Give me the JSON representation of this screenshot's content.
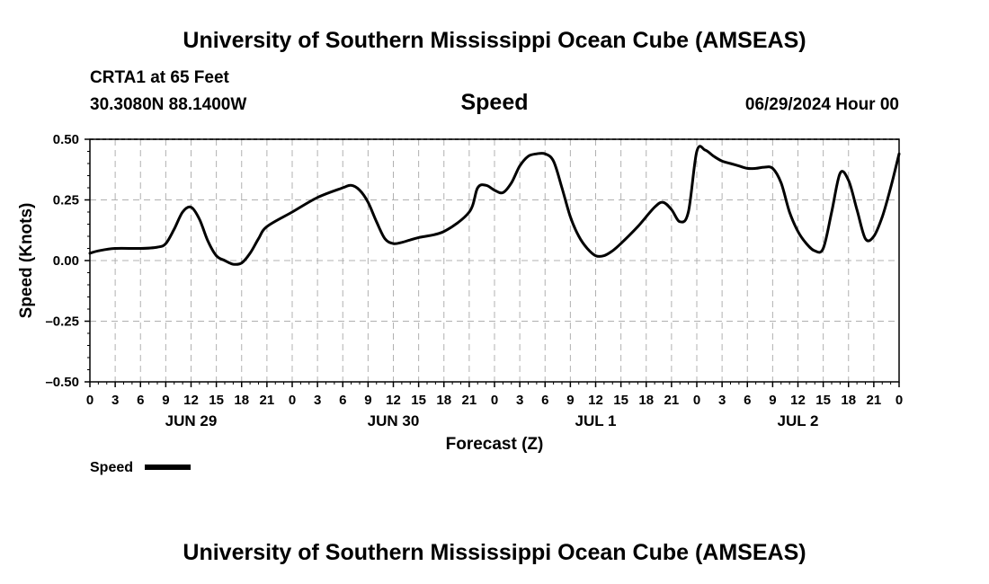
{
  "header": {
    "title": "University of Southern Mississippi Ocean Cube (AMSEAS)",
    "station": "CRTA1 at 65 Feet",
    "location": "30.3080N  88.1400W",
    "variable": "Speed",
    "datetime": "06/29/2024 Hour 00"
  },
  "footer": {
    "title": "University of Southern Mississippi Ocean Cube (AMSEAS)"
  },
  "legend": {
    "label": "Speed",
    "color": "#000000"
  },
  "chart_data": {
    "type": "line",
    "title": "Speed",
    "xlabel": "Forecast (Z)",
    "ylabel": "Speed (Knots)",
    "xlim": [
      0,
      96
    ],
    "ylim": [
      -0.5,
      0.5
    ],
    "grid": true,
    "y_ticks": [
      -0.5,
      -0.25,
      0.0,
      0.25,
      0.5
    ],
    "y_tick_labels": [
      "–0.50",
      "–0.25",
      "0.00",
      "0.25",
      "0.50"
    ],
    "x_ticks": [
      0,
      3,
      6,
      9,
      12,
      15,
      18,
      21,
      24,
      27,
      30,
      33,
      36,
      39,
      42,
      45,
      48,
      51,
      54,
      57,
      60,
      63,
      66,
      69,
      72,
      75,
      78,
      81,
      84,
      87,
      90,
      93,
      96
    ],
    "x_tick_labels": [
      "0",
      "3",
      "6",
      "9",
      "12",
      "15",
      "18",
      "21",
      "0",
      "3",
      "6",
      "9",
      "12",
      "15",
      "18",
      "21",
      "0",
      "3",
      "6",
      "9",
      "12",
      "15",
      "18",
      "21",
      "0",
      "3",
      "6",
      "9",
      "12",
      "15",
      "18",
      "21",
      "0"
    ],
    "day_labels": [
      {
        "label": "JUN 29",
        "hour": 12
      },
      {
        "label": "JUN 30",
        "hour": 36
      },
      {
        "label": "JUL 1",
        "hour": 60
      },
      {
        "label": "JUL 2",
        "hour": 84
      }
    ],
    "series": [
      {
        "name": "Speed",
        "x": [
          0,
          1,
          3,
          6,
          8,
          9,
          10,
          11,
          12,
          13,
          14,
          15,
          16,
          17,
          18,
          19,
          20,
          21,
          24,
          27,
          30,
          31,
          32,
          33,
          34,
          35,
          36,
          37,
          38,
          39,
          42,
          45,
          46,
          47,
          48,
          49,
          50,
          51,
          52,
          53,
          54,
          55,
          56,
          57,
          58,
          59,
          60,
          61,
          62,
          63,
          65,
          67,
          68,
          69,
          70,
          71,
          72,
          73,
          74,
          75,
          76,
          77,
          78,
          79,
          80,
          81,
          82,
          83,
          84,
          85,
          86,
          87,
          88,
          89,
          90,
          91,
          92,
          93,
          94,
          95,
          96
        ],
        "y": [
          0.03,
          0.04,
          0.05,
          0.05,
          0.055,
          0.07,
          0.13,
          0.2,
          0.22,
          0.17,
          0.08,
          0.02,
          0.0,
          -0.015,
          -0.01,
          0.03,
          0.09,
          0.14,
          0.2,
          0.26,
          0.3,
          0.31,
          0.29,
          0.24,
          0.16,
          0.09,
          0.07,
          0.075,
          0.085,
          0.095,
          0.12,
          0.2,
          0.3,
          0.31,
          0.29,
          0.28,
          0.32,
          0.39,
          0.43,
          0.44,
          0.44,
          0.41,
          0.3,
          0.18,
          0.1,
          0.05,
          0.02,
          0.02,
          0.04,
          0.07,
          0.14,
          0.22,
          0.24,
          0.21,
          0.16,
          0.2,
          0.45,
          0.455,
          0.43,
          0.41,
          0.4,
          0.39,
          0.38,
          0.38,
          0.385,
          0.38,
          0.32,
          0.2,
          0.12,
          0.07,
          0.04,
          0.05,
          0.2,
          0.36,
          0.33,
          0.21,
          0.09,
          0.1,
          0.18,
          0.3,
          0.44
        ]
      }
    ]
  }
}
